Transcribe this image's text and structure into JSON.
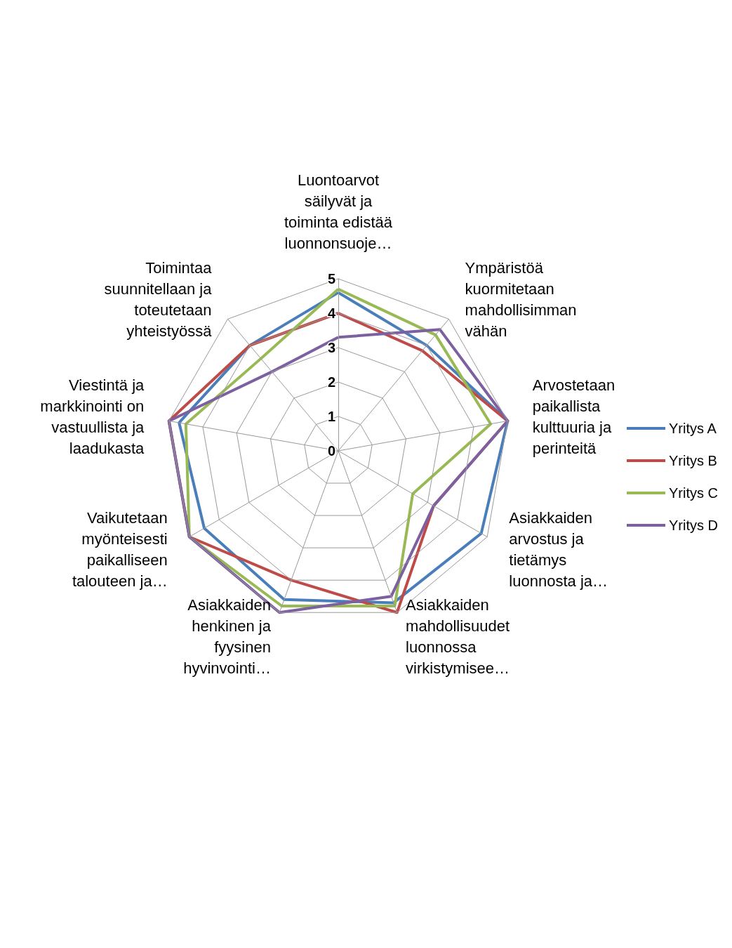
{
  "chart_data": {
    "type": "radar",
    "categories": [
      "Luontoarvot säilyvät ja toiminta edistää luonnonsuoje…",
      "Ympäristöä kuormitetaan mahdollisimman vähän",
      "Arvostetaan paikallista kulttuuria ja perinteitä",
      "Asiakkaiden arvostus ja tietämys luonnosta ja…",
      "Asiakkaiden mahdollisuudet luonnossa virkistymisee…",
      "Asiakkaiden henkinen ja fyysinen hyvinvointi…",
      "Vaikutetaan myönteisesti paikalliseen talouteen ja…",
      "Viestintä ja markkinointi on vastuullista ja laadukasta",
      "Toimintaa suunnitellaan ja toteutetaan yhteistyössä"
    ],
    "series": [
      {
        "name": "Yritys A",
        "color": "#4a7ebb",
        "values": [
          4.6,
          4.0,
          5,
          4.8,
          4.7,
          4.6,
          4.5,
          4.7,
          4.0
        ]
      },
      {
        "name": "Yritys B",
        "color": "#be4b48",
        "values": [
          4.0,
          3.8,
          5,
          3.2,
          5,
          4.0,
          5,
          5,
          4.0
        ]
      },
      {
        "name": "Yritys C",
        "color": "#98b954",
        "values": [
          4.7,
          4.4,
          4.5,
          2.5,
          4.8,
          4.8,
          5,
          4.5,
          3.5
        ]
      },
      {
        "name": "Yritys D",
        "color": "#7d60a0",
        "values": [
          3.3,
          4.6,
          5,
          3.2,
          4.5,
          5,
          5,
          5,
          3.0
        ]
      }
    ],
    "ylim": [
      0,
      5
    ],
    "yticks": [
      0,
      1,
      2,
      3,
      4,
      5
    ],
    "legend": "right",
    "marker": "none",
    "line_style": "solid"
  }
}
